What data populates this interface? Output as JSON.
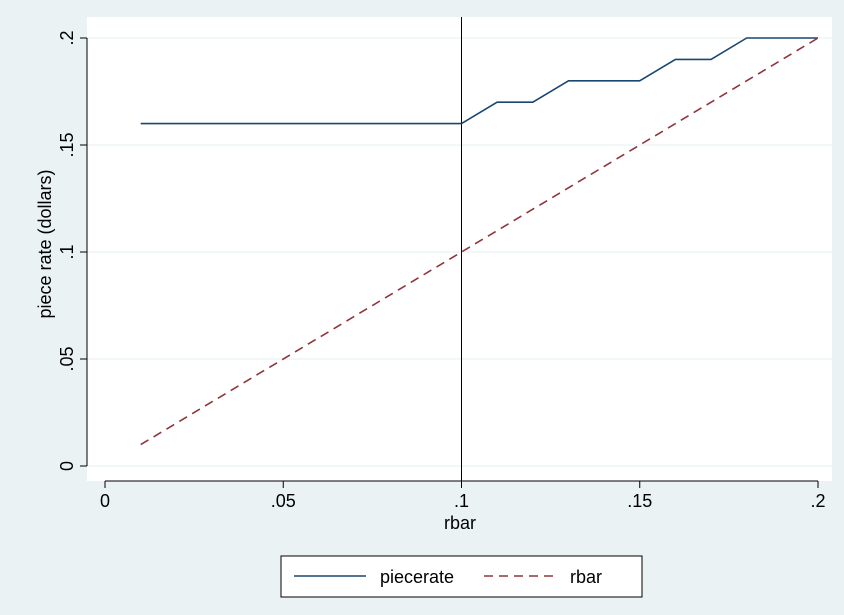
{
  "chart_data": {
    "type": "line",
    "title": "",
    "xlabel": "rbar",
    "ylabel": "piece rate (dollars)",
    "xlim": [
      0,
      0.2
    ],
    "ylim": [
      0,
      0.2
    ],
    "x_ticks": [
      {
        "value": 0,
        "label": "0"
      },
      {
        "value": 0.05,
        "label": ".05"
      },
      {
        "value": 0.1,
        "label": ".1"
      },
      {
        "value": 0.15,
        "label": ".15"
      },
      {
        "value": 0.2,
        "label": ".2"
      }
    ],
    "y_ticks": [
      {
        "value": 0,
        "label": "0"
      },
      {
        "value": 0.05,
        "label": ".05"
      },
      {
        "value": 0.1,
        "label": ".1"
      },
      {
        "value": 0.15,
        "label": ".15"
      },
      {
        "value": 0.2,
        "label": ".2"
      }
    ],
    "grid": true,
    "reference_line_x": 0.1,
    "legend_position": "bottom",
    "series": [
      {
        "name": "piecerate",
        "color": "#1a476f",
        "dash": "solid",
        "x": [
          0.01,
          0.1,
          0.11,
          0.12,
          0.13,
          0.15,
          0.16,
          0.17,
          0.18,
          0.19,
          0.2
        ],
        "y": [
          0.16,
          0.16,
          0.17,
          0.17,
          0.18,
          0.18,
          0.19,
          0.19,
          0.2,
          0.2,
          0.2
        ]
      },
      {
        "name": "rbar",
        "color": "#90353b",
        "dash": "dashed",
        "x": [
          0.01,
          0.2
        ],
        "y": [
          0.01,
          0.2
        ]
      }
    ]
  }
}
